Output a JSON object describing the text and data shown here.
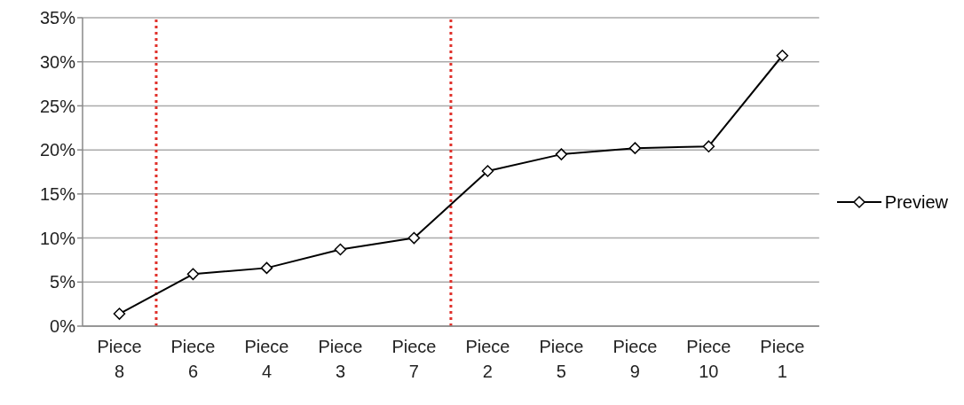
{
  "chart_data": {
    "type": "line",
    "categories": [
      "Piece 8",
      "Piece 6",
      "Piece 4",
      "Piece 3",
      "Piece 7",
      "Piece 2",
      "Piece 5",
      "Piece 9",
      "Piece 10",
      "Piece 1"
    ],
    "series": [
      {
        "name": "Preview",
        "color": "#000000",
        "values": [
          1.4,
          5.9,
          6.6,
          8.7,
          10.0,
          17.6,
          19.5,
          20.2,
          20.4,
          30.7
        ]
      }
    ],
    "ylim": [
      0,
      35
    ],
    "yticks": [
      {
        "value": 0,
        "label": "0%"
      },
      {
        "value": 5,
        "label": "5%"
      },
      {
        "value": 10,
        "label": "10%"
      },
      {
        "value": 15,
        "label": "15%"
      },
      {
        "value": 20,
        "label": "20%"
      },
      {
        "value": 25,
        "label": "25%"
      },
      {
        "value": 30,
        "label": "30%"
      },
      {
        "value": 35,
        "label": "35%"
      }
    ],
    "grid": "y",
    "legend": "right",
    "marker": "diamond",
    "line_style": "solid"
  }
}
